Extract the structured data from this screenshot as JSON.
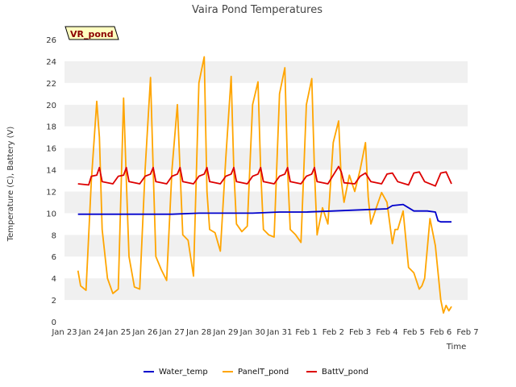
{
  "chart_data": {
    "type": "line",
    "title": "Vaira Pond Temperatures",
    "xlabel": "Time",
    "ylabel": "Temperature (C), Battery (V)",
    "site_tag": "VR_pond",
    "ylim": [
      0,
      26
    ],
    "yticks": [
      0,
      2,
      4,
      6,
      8,
      10,
      12,
      14,
      16,
      18,
      20,
      22,
      24,
      26
    ],
    "xlim": [
      0,
      15
    ],
    "xtick_labels": [
      "Jan 23",
      "Jan 24",
      "Jan 25",
      "Jan 26",
      "Jan 27",
      "Jan 28",
      "Jan 29",
      "Jan 30",
      "Jan 31",
      "Feb 1",
      "Feb 2",
      "Feb 3",
      "Feb 4",
      "Feb 5",
      "Feb 6",
      "Feb 7"
    ],
    "grid": "horizontal bands",
    "legend_position": "bottom",
    "series": [
      {
        "name": "Water_temp",
        "color": "#0000cc",
        "x": [
          "Jan 23 12:00",
          "Jan 24 00:00",
          "Jan 25 00:00",
          "Jan 26 00:00",
          "Jan 27 00:00",
          "Jan 28 00:00",
          "Jan 29 00:00",
          "Jan 30 00:00",
          "Jan 31 00:00",
          "Feb 1 00:00",
          "Feb 2 00:00",
          "Feb 3 00:00",
          "Feb 4 00:00",
          "Feb 4 04:48",
          "Feb 4 14:24",
          "Feb 5 00:00",
          "Feb 5 12:00",
          "Feb 5 19:12",
          "Feb 5 21:36",
          "Feb 6 00:00",
          "Feb 6 09:36"
        ],
        "y": [
          9.9,
          9.9,
          9.9,
          9.9,
          9.9,
          10.0,
          10.0,
          10.0,
          10.1,
          10.1,
          10.2,
          10.3,
          10.4,
          10.7,
          10.8,
          10.2,
          10.2,
          10.1,
          9.3,
          9.2,
          9.2
        ]
      },
      {
        "name": "PanelT_pond",
        "color": "#ffa500",
        "x": [
          "Jan 23 12:00",
          "Jan 23 14:24",
          "Jan 23 19:12",
          "Jan 24 00:00",
          "Jan 24 04:48",
          "Jan 24 07:12",
          "Jan 24 09:36",
          "Jan 24 14:24",
          "Jan 24 19:12",
          "Jan 25 00:00",
          "Jan 25 04:48",
          "Jan 25 07:12",
          "Jan 25 09:36",
          "Jan 25 14:24",
          "Jan 25 19:12",
          "Jan 26 00:00",
          "Jan 26 04:48",
          "Jan 26 07:12",
          "Jan 26 09:36",
          "Jan 26 14:24",
          "Jan 26 19:12",
          "Jan 27 00:00",
          "Jan 27 04:48",
          "Jan 27 07:12",
          "Jan 27 09:36",
          "Jan 27 14:24",
          "Jan 27 19:12",
          "Jan 28 00:00",
          "Jan 28 04:48",
          "Jan 28 07:12",
          "Jan 28 09:36",
          "Jan 28 14:24",
          "Jan 28 19:12",
          "Jan 29 00:00",
          "Jan 29 04:48",
          "Jan 29 07:12",
          "Jan 29 09:36",
          "Jan 29 14:24",
          "Jan 29 19:12",
          "Jan 30 00:00",
          "Jan 30 04:48",
          "Jan 30 07:12",
          "Jan 30 09:36",
          "Jan 30 14:24",
          "Jan 30 19:12",
          "Jan 31 00:00",
          "Jan 31 04:48",
          "Jan 31 07:12",
          "Jan 31 09:36",
          "Jan 31 14:24",
          "Jan 31 19:12",
          "Feb 1 00:00",
          "Feb 1 04:48",
          "Feb 1 07:12",
          "Feb 1 09:36",
          "Feb 1 14:24",
          "Feb 1 19:12",
          "Feb 2 00:00",
          "Feb 2 04:48",
          "Feb 2 07:12",
          "Feb 2 09:36",
          "Feb 2 14:24",
          "Feb 2 19:12",
          "Feb 3 00:00",
          "Feb 3 04:48",
          "Feb 3 07:12",
          "Feb 3 09:36",
          "Feb 3 14:24",
          "Feb 3 19:12",
          "Feb 4 00:00",
          "Feb 4 04:48",
          "Feb 4 07:12",
          "Feb 4 09:36",
          "Feb 4 14:24",
          "Feb 4 19:12",
          "Feb 5 00:00",
          "Feb 5 04:48",
          "Feb 5 07:12",
          "Feb 5 09:36",
          "Feb 5 14:24",
          "Feb 5 19:12",
          "Feb 6 00:00",
          "Feb 6 02:24",
          "Feb 6 04:48",
          "Feb 6 07:12",
          "Feb 6 09:36"
        ],
        "y": [
          4.7,
          3.3,
          2.9,
          13.0,
          20.3,
          17.0,
          8.5,
          4.0,
          2.6,
          3.0,
          20.6,
          13.0,
          6.0,
          3.2,
          3.0,
          14.0,
          22.5,
          14.0,
          6.0,
          4.8,
          3.8,
          14.0,
          20.0,
          14.0,
          8.0,
          7.5,
          4.2,
          22.0,
          24.4,
          12.0,
          8.5,
          8.2,
          6.5,
          15.0,
          22.6,
          14.0,
          9.0,
          8.3,
          8.8,
          20.0,
          22.1,
          14.0,
          8.5,
          8.0,
          7.8,
          21.0,
          23.4,
          14.0,
          8.5,
          8.0,
          7.3,
          20.0,
          22.4,
          14.0,
          8.0,
          10.5,
          9.0,
          16.5,
          18.5,
          13.0,
          11.0,
          13.5,
          12.0,
          14.0,
          16.5,
          11.5,
          9.0,
          10.5,
          11.9,
          11.0,
          7.2,
          8.5,
          8.5,
          10.2,
          5.0,
          4.5,
          3.0,
          3.3,
          4.0,
          9.5,
          7.0,
          2.0,
          0.8,
          1.5,
          1.0,
          1.4
        ],
        "note_x_units": "dates as printed on axis"
      },
      {
        "name": "BattV_pond",
        "color": "#dd0000",
        "x": [
          "Jan 23 12:00",
          "Jan 23 21:36",
          "Jan 24 00:00",
          "Jan 24 04:48",
          "Jan 24 07:12",
          "Jan 24 09:36",
          "Jan 24 19:12",
          "Jan 25 00:00",
          "Jan 25 04:48",
          "Jan 25 07:12",
          "Jan 25 09:36",
          "Jan 25 19:12",
          "Jan 26 00:00",
          "Jan 26 04:48",
          "Jan 26 07:12",
          "Jan 26 09:36",
          "Jan 26 19:12",
          "Jan 27 00:00",
          "Jan 27 04:48",
          "Jan 27 07:12",
          "Jan 27 09:36",
          "Jan 27 19:12",
          "Jan 28 00:00",
          "Jan 28 04:48",
          "Jan 28 07:12",
          "Jan 28 09:36",
          "Jan 28 19:12",
          "Jan 29 00:00",
          "Jan 29 04:48",
          "Jan 29 07:12",
          "Jan 29 09:36",
          "Jan 29 19:12",
          "Jan 30 00:00",
          "Jan 30 04:48",
          "Jan 30 07:12",
          "Jan 30 09:36",
          "Jan 30 19:12",
          "Jan 31 00:00",
          "Jan 31 04:48",
          "Jan 31 07:12",
          "Jan 31 09:36",
          "Jan 31 19:12",
          "Feb 1 00:00",
          "Feb 1 04:48",
          "Feb 1 07:12",
          "Feb 1 09:36",
          "Feb 1 19:12",
          "Feb 2 00:00",
          "Feb 2 04:48",
          "Feb 2 07:12",
          "Feb 2 09:36",
          "Feb 2 19:12",
          "Feb 3 00:00",
          "Feb 3 04:48",
          "Feb 3 09:36",
          "Feb 3 19:12",
          "Feb 4 00:00",
          "Feb 4 04:48",
          "Feb 4 09:36",
          "Feb 4 19:12",
          "Feb 5 00:00",
          "Feb 5 04:48",
          "Feb 5 09:36",
          "Feb 5 19:12",
          "Feb 6 00:00",
          "Feb 6 04:48",
          "Feb 6 09:36"
        ],
        "y": [
          12.7,
          12.6,
          13.4,
          13.5,
          14.2,
          12.9,
          12.7,
          13.4,
          13.5,
          14.2,
          12.9,
          12.7,
          13.4,
          13.6,
          14.2,
          12.9,
          12.7,
          13.4,
          13.6,
          14.2,
          12.9,
          12.7,
          13.4,
          13.6,
          14.2,
          12.9,
          12.7,
          13.4,
          13.6,
          14.2,
          12.9,
          12.7,
          13.4,
          13.6,
          14.2,
          12.9,
          12.7,
          13.4,
          13.6,
          14.2,
          12.9,
          12.7,
          13.4,
          13.6,
          14.2,
          12.9,
          12.7,
          13.5,
          14.3,
          13.8,
          12.8,
          12.7,
          13.4,
          13.7,
          12.9,
          12.7,
          13.6,
          13.7,
          12.9,
          12.6,
          13.7,
          13.8,
          12.9,
          12.5,
          13.7,
          13.8,
          12.7
        ]
      }
    ]
  }
}
